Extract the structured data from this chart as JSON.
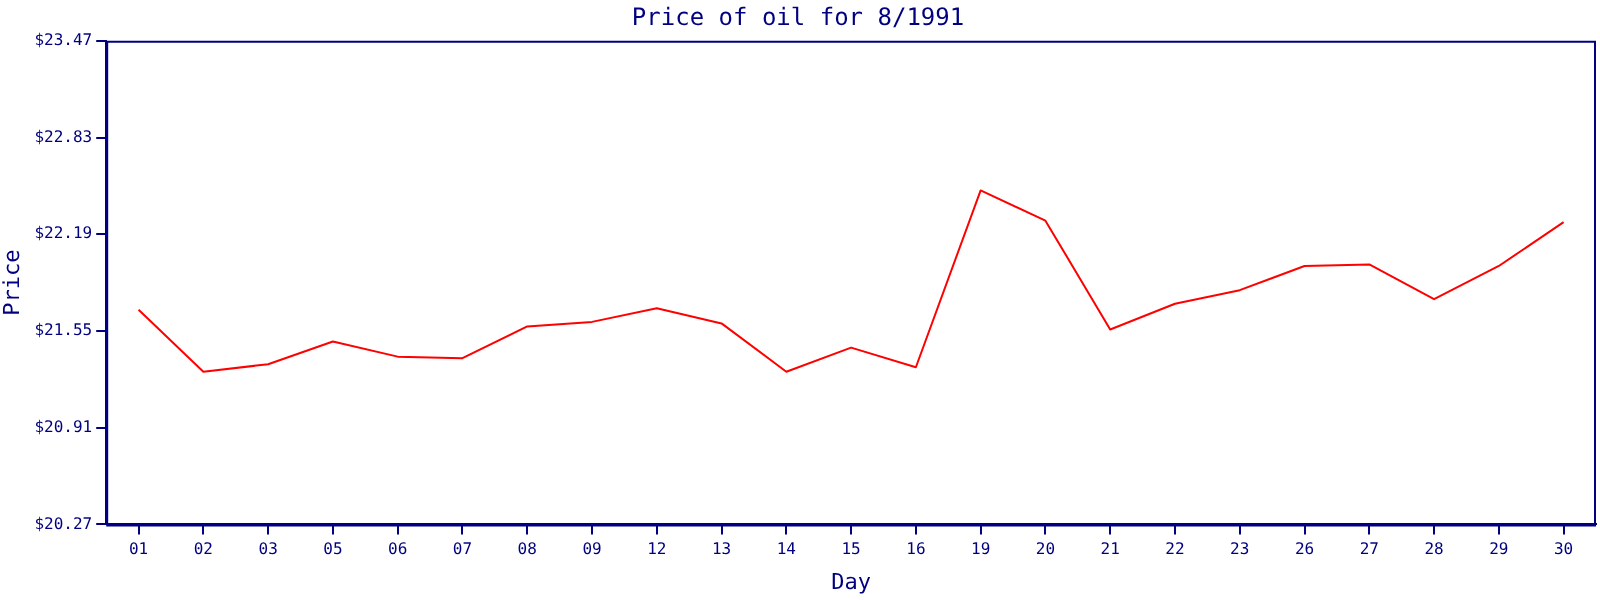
{
  "chart_data": {
    "type": "line",
    "title": "Price of oil for 8/1991",
    "xlabel": "Day",
    "ylabel": "Price",
    "categories": [
      "01",
      "02",
      "03",
      "05",
      "06",
      "07",
      "08",
      "09",
      "12",
      "13",
      "14",
      "15",
      "16",
      "19",
      "20",
      "21",
      "22",
      "23",
      "26",
      "27",
      "28",
      "29",
      "30"
    ],
    "series": [
      {
        "color": "#ff0000",
        "values": [
          21.69,
          21.28,
          21.33,
          21.48,
          21.38,
          21.37,
          21.58,
          21.61,
          21.7,
          21.6,
          21.28,
          21.44,
          21.31,
          22.48,
          22.28,
          21.56,
          21.73,
          21.82,
          21.98,
          21.99,
          21.76,
          21.98,
          22.27
        ]
      }
    ],
    "ylim": [
      20.27,
      23.47
    ],
    "yticks": [
      {
        "value": 20.27,
        "label": "$20.27"
      },
      {
        "value": 20.91,
        "label": "$20.91"
      },
      {
        "value": 21.55,
        "label": "$21.55"
      },
      {
        "value": 22.19,
        "label": "$22.19"
      },
      {
        "value": 22.83,
        "label": "$22.83"
      },
      {
        "value": 23.47,
        "label": "$23.47"
      }
    ],
    "grid": false,
    "legend": false,
    "marker": "none",
    "line_style": "solid"
  }
}
